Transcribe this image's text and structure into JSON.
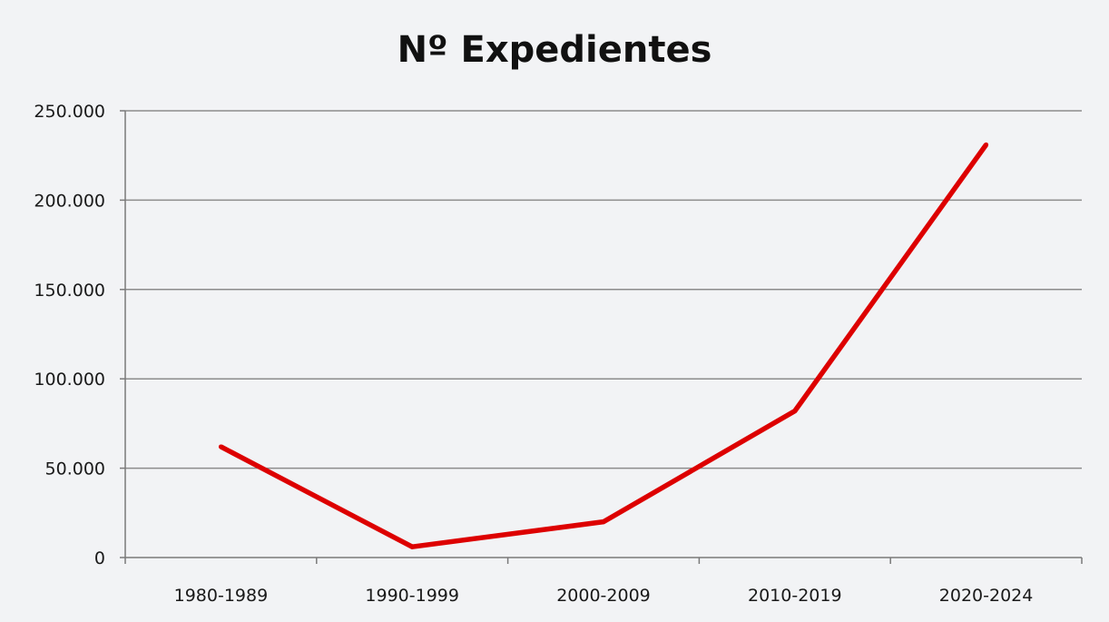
{
  "chart_data": {
    "type": "line",
    "title": "Nº Expedientes",
    "xlabel": "",
    "ylabel": "",
    "categories": [
      "1980-1989",
      "1990-1999",
      "2000-2009",
      "2010-2019",
      "2020-2024"
    ],
    "series": [
      {
        "name": "Nº Expedientes",
        "values": [
          62000,
          6000,
          20000,
          82000,
          231000
        ],
        "color": "#dd0000"
      }
    ],
    "ylim": [
      0,
      250000
    ],
    "yticks": [
      0,
      50000,
      100000,
      150000,
      200000,
      250000
    ],
    "ytick_labels": [
      "0",
      "50.000",
      "100.000",
      "150.000",
      "200.000",
      "250.000"
    ],
    "grid": true,
    "legend": "none"
  },
  "colors": {
    "background": "#f2f3f5",
    "gridline": "#8c8c8c",
    "axis": "#7a7a7a",
    "line": "#dd0000"
  }
}
